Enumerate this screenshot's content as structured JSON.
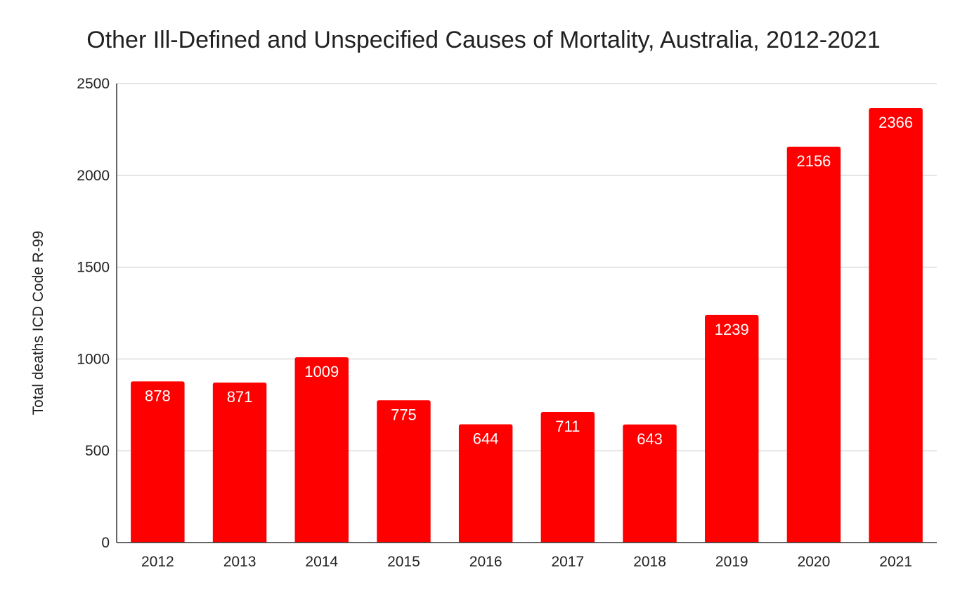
{
  "chart_data": {
    "type": "bar",
    "title": "Other Ill-Defined and Unspecified Causes of Mortality, Australia, 2012-2021",
    "xlabel": "",
    "ylabel": "Total deaths ICD Code R-99",
    "categories": [
      "2012",
      "2013",
      "2014",
      "2015",
      "2016",
      "2017",
      "2018",
      "2019",
      "2020",
      "2021"
    ],
    "values": [
      878,
      871,
      1009,
      775,
      644,
      711,
      643,
      1239,
      2156,
      2366
    ],
    "ylim": [
      0,
      2500
    ],
    "yticks": [
      0,
      500,
      1000,
      1500,
      2000,
      2500
    ],
    "grid": true,
    "legend": "none",
    "bar_color": "#ff0000",
    "data_labels": true
  }
}
